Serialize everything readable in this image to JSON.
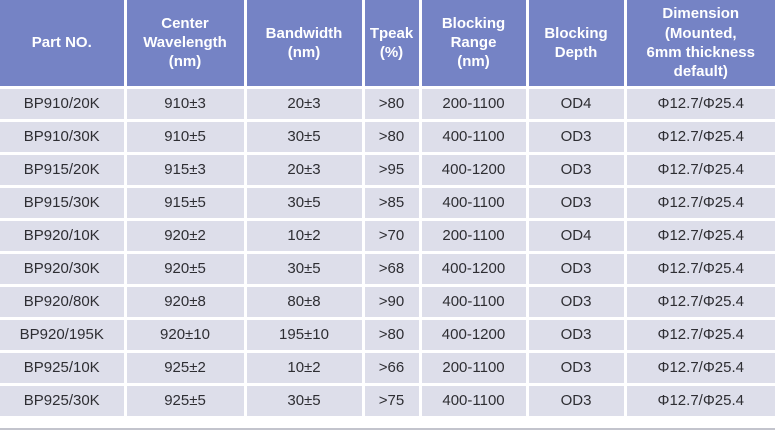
{
  "chart_data": {
    "type": "table",
    "columns": [
      "Part NO.",
      "Center Wavelength (nm)",
      "Bandwidth (nm)",
      "Tpeak (%)",
      "Blocking Range (nm)",
      "Blocking Depth",
      "Dimension (Mounted, 6mm thickness default)"
    ],
    "rows": [
      [
        "BP910/20K",
        "910±3",
        "20±3",
        ">80",
        "200-1100",
        "OD4",
        "Φ12.7/Φ25.4"
      ],
      [
        "BP910/30K",
        "910±5",
        "30±5",
        ">80",
        "400-1100",
        "OD3",
        "Φ12.7/Φ25.4"
      ],
      [
        "BP915/20K",
        "915±3",
        "20±3",
        ">95",
        "400-1200",
        "OD3",
        "Φ12.7/Φ25.4"
      ],
      [
        "BP915/30K",
        "915±5",
        "30±5",
        ">85",
        "400-1100",
        "OD3",
        "Φ12.7/Φ25.4"
      ],
      [
        "BP920/10K",
        "920±2",
        "10±2",
        ">70",
        "200-1100",
        "OD4",
        "Φ12.7/Φ25.4"
      ],
      [
        "BP920/30K",
        "920±5",
        "30±5",
        ">68",
        "400-1200",
        "OD3",
        "Φ12.7/Φ25.4"
      ],
      [
        "BP920/80K",
        "920±8",
        "80±8",
        ">90",
        "400-1100",
        "OD3",
        "Φ12.7/Φ25.4"
      ],
      [
        "BP920/195K",
        "920±10",
        "195±10",
        ">80",
        "400-1200",
        "OD3",
        "Φ12.7/Φ25.4"
      ],
      [
        "BP925/10K",
        "925±2",
        "10±2",
        ">66",
        "200-1100",
        "OD3",
        "Φ12.7/Φ25.4"
      ],
      [
        "BP925/30K",
        "925±5",
        "30±5",
        ">75",
        "400-1100",
        "OD3",
        "Φ12.7/Φ25.4"
      ]
    ]
  },
  "table": {
    "header_labels": [
      {
        "label": "Part NO."
      },
      {
        "label": "Center\nWavelength\n(nm)"
      },
      {
        "label": "Bandwidth\n(nm)"
      },
      {
        "label": "Tpeak\n(%)"
      },
      {
        "label": "Blocking\nRange\n(nm)"
      },
      {
        "label": "Blocking\nDepth"
      },
      {
        "label": "Dimension\n(Mounted,\n6mm thickness\ndefault)"
      }
    ]
  },
  "colors": {
    "header_bg": "#7583c5",
    "row_bg": "#dddeea",
    "gap": "#ffffff",
    "header_text": "#ffffff",
    "body_text": "#2e2e33",
    "bottom_line": "#c3c4cd"
  }
}
